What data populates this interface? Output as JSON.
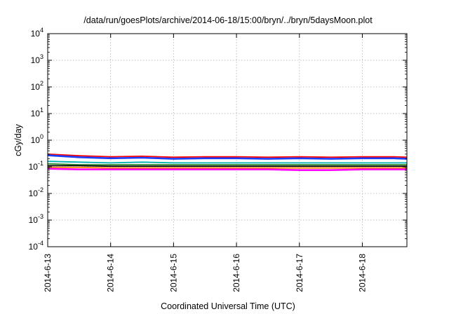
{
  "chart_data": {
    "type": "line",
    "title": "/data/run/goesPlots/archive/2014-06-18/15:00/bryn/../bryn/5daysMoon.plot",
    "xlabel": "Coordinated Universal Time (UTC)",
    "ylabel": "cGy/day",
    "yscale": "log",
    "ylim": [
      0.0001,
      10000
    ],
    "xlim": [
      "2014-06-13",
      "2014-06-18 17:00"
    ],
    "grid": true,
    "x_ticks": [
      "2014-6-13",
      "2014-6-14",
      "2014-6-15",
      "2014-6-16",
      "2014-6-17",
      "2014-6-18"
    ],
    "y_ticks": [
      {
        "base": "10",
        "exp": "-4"
      },
      {
        "base": "10",
        "exp": "-3"
      },
      {
        "base": "10",
        "exp": "-2"
      },
      {
        "base": "10",
        "exp": "-1"
      },
      {
        "base": "10",
        "exp": "0"
      },
      {
        "base": "10",
        "exp": "1"
      },
      {
        "base": "10",
        "exp": "2"
      },
      {
        "base": "10",
        "exp": "3"
      },
      {
        "base": "10",
        "exp": "4"
      }
    ],
    "x": [
      "2014-06-13 00:00",
      "2014-06-13 12:00",
      "2014-06-14 00:00",
      "2014-06-14 12:00",
      "2014-06-15 00:00",
      "2014-06-15 12:00",
      "2014-06-16 00:00",
      "2014-06-16 12:00",
      "2014-06-17 00:00",
      "2014-06-17 12:00",
      "2014-06-18 00:00",
      "2014-06-18 12:00",
      "2014-06-18 17:00"
    ],
    "series": [
      {
        "color": "#ff0000",
        "values": [
          0.3,
          0.26,
          0.24,
          0.25,
          0.23,
          0.24,
          0.24,
          0.23,
          0.24,
          0.23,
          0.24,
          0.24,
          0.23
        ]
      },
      {
        "color": "#1a3cff",
        "values": [
          0.27,
          0.23,
          0.21,
          0.22,
          0.2,
          0.21,
          0.21,
          0.2,
          0.21,
          0.2,
          0.21,
          0.21,
          0.2
        ]
      },
      {
        "color": "#00b0b0",
        "values": [
          0.16,
          0.15,
          0.14,
          0.15,
          0.14,
          0.14,
          0.14,
          0.14,
          0.14,
          0.14,
          0.14,
          0.14,
          0.14
        ]
      },
      {
        "color": "#2e8b2e",
        "values": [
          0.13,
          0.12,
          0.12,
          0.12,
          0.12,
          0.12,
          0.12,
          0.12,
          0.12,
          0.12,
          0.12,
          0.12,
          0.12
        ]
      },
      {
        "color": "#000000",
        "values": [
          0.11,
          0.11,
          0.105,
          0.105,
          0.105,
          0.105,
          0.105,
          0.105,
          0.105,
          0.105,
          0.105,
          0.105,
          0.105
        ]
      },
      {
        "color": "#ff8c00",
        "values": [
          0.095,
          0.095,
          0.09,
          0.09,
          0.09,
          0.09,
          0.09,
          0.09,
          0.09,
          0.09,
          0.09,
          0.09,
          0.09
        ]
      },
      {
        "color": "#ff00ff",
        "values": [
          0.085,
          0.08,
          0.08,
          0.08,
          0.08,
          0.08,
          0.08,
          0.08,
          0.075,
          0.075,
          0.08,
          0.08,
          0.08
        ]
      }
    ]
  }
}
